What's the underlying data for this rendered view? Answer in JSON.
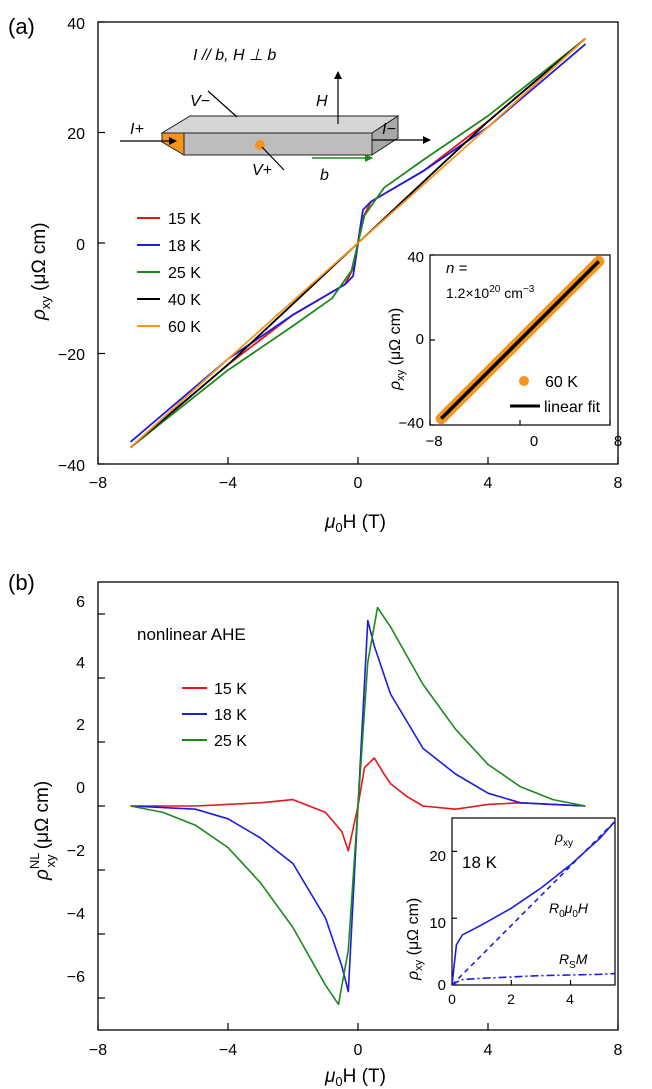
{
  "panel_a": {
    "label": "(a)",
    "xlabel_sym": "μ",
    "xlabel_sub": "0",
    "xlabel_rest": "H (T)",
    "ylabel_sym": "ρ",
    "ylabel_sub": "xy",
    "ylabel_unit": " (μΩ cm)",
    "yticks": [
      "40",
      "20",
      "0",
      "−20",
      "−40"
    ],
    "xticks": [
      "−8",
      "−4",
      "0",
      "4",
      "8"
    ],
    "schematic": {
      "title": "I // b, H ⊥ b",
      "v_minus": "V−",
      "v_plus": "V+",
      "i_plus": "I+",
      "i_minus": "I−",
      "h": "H",
      "b": "b"
    },
    "inset": {
      "n_label": "n =",
      "n_value": "1.2×10",
      "n_exp": "20",
      "n_unit": " cm",
      "n_unit_exp": "−3",
      "ylabel_sym": "ρ",
      "ylabel_sub": "xy",
      "ylabel_unit": " (μΩ cm)",
      "yticks": [
        "40",
        "0",
        "−40"
      ],
      "xticks": [
        "−8",
        "0",
        "8"
      ],
      "legend": [
        "60 K",
        "linear fit"
      ]
    }
  },
  "panel_b": {
    "label": "(b)",
    "annotation": "nonlinear AHE",
    "xlabel_sym": "μ",
    "xlabel_sub": "0",
    "xlabel_rest": "H (T)",
    "ylabel_sym": "ρ",
    "ylabel_sup": "NL",
    "ylabel_sub": "xy",
    "ylabel_unit": " (μΩ cm)",
    "yticks": [
      "6",
      "4",
      "2",
      "0",
      "−2",
      "−4",
      "−6"
    ],
    "xticks": [
      "−8",
      "−4",
      "0",
      "4",
      "8"
    ],
    "inset": {
      "temp": "18 K",
      "ylabel_sym": "ρ",
      "ylabel_sub": "xy",
      "ylabel_unit": " (μΩ cm)",
      "yticks": [
        "20",
        "10",
        "0"
      ],
      "xticks": [
        "0",
        "2",
        "4"
      ],
      "lbl_rho": "ρ",
      "lbl_rho_sub": "xy",
      "lbl_r0": "R",
      "lbl_r0_sub": "0",
      "lbl_r0_rest": "μ",
      "lbl_r0_sub2": "0",
      "lbl_r0_end": "H",
      "lbl_rs": "R",
      "lbl_rs_sub": "S",
      "lbl_rs_rest": "M"
    }
  },
  "colors": {
    "15K": "#e8151b",
    "18K": "#1c1ce0",
    "25K": "#1b8a1b",
    "40K": "#000000",
    "60K": "#f7941d"
  },
  "chart_data": [
    {
      "type": "line",
      "xlim": [
        -8,
        8
      ],
      "ylim": [
        -40,
        40
      ],
      "legend_position": "left",
      "series": [
        {
          "name": "15 K",
          "color": "#e8151b",
          "x": [
            -7,
            -4,
            -2,
            -0.4,
            -0.1,
            0,
            0.1,
            0.4,
            2,
            4,
            7
          ],
          "y": [
            -37,
            -22,
            -13,
            -7.5,
            -4,
            0,
            4,
            7.5,
            13,
            22,
            37
          ]
        },
        {
          "name": "18 K",
          "color": "#1c1ce0",
          "x": [
            -7,
            -4,
            -2,
            -0.4,
            -0.15,
            0,
            0.15,
            0.4,
            2,
            4,
            7
          ],
          "y": [
            -36,
            -21,
            -13,
            -7.5,
            -6,
            0,
            6,
            7.5,
            13,
            21,
            36
          ]
        },
        {
          "name": "25 K",
          "color": "#1b8a1b",
          "x": [
            -7,
            -4,
            -2,
            -0.8,
            -0.2,
            0,
            0.2,
            0.8,
            2,
            4,
            7
          ],
          "y": [
            -37,
            -23,
            -15,
            -10,
            -5,
            0,
            5,
            10,
            15,
            23,
            37
          ]
        },
        {
          "name": "40 K",
          "color": "#000000",
          "x": [
            -7,
            -4,
            -2,
            0,
            2,
            4,
            7
          ],
          "y": [
            -37,
            -22,
            -11,
            0,
            11,
            22,
            37
          ]
        },
        {
          "name": "60 K",
          "color": "#f7941d",
          "x": [
            -7,
            -4,
            -2,
            0,
            2,
            4,
            7
          ],
          "y": [
            -37,
            -21,
            -10.5,
            0,
            10.5,
            21,
            37
          ]
        }
      ]
    },
    {
      "type": "scatter",
      "xlim": [
        -8,
        8
      ],
      "ylim": [
        -40,
        40
      ],
      "series": [
        {
          "name": "60 K",
          "color": "#f7941d",
          "x": [
            -7,
            -5,
            -3,
            -1,
            0,
            1,
            3,
            5,
            7
          ],
          "y": [
            -37,
            -26.4,
            -15.9,
            -5.3,
            0,
            5.3,
            15.9,
            26.4,
            37
          ]
        },
        {
          "name": "linear fit",
          "color": "#000000",
          "x": [
            -7,
            7
          ],
          "y": [
            -37,
            37
          ]
        }
      ]
    },
    {
      "type": "line",
      "xlim": [
        -8,
        8
      ],
      "ylim": [
        -7,
        7
      ],
      "series": [
        {
          "name": "15 K",
          "color": "#e8151b",
          "x": [
            -7,
            -5,
            -3,
            -2,
            -1,
            -0.5,
            -0.3,
            0,
            0.2,
            0.5,
            0.8,
            1,
            1.5,
            2,
            3,
            4,
            5,
            6,
            7
          ],
          "y": [
            0,
            0,
            0.1,
            0.2,
            -0.2,
            -0.8,
            -1.4,
            0,
            1.2,
            1.5,
            1.0,
            0.7,
            0.3,
            0,
            -0.1,
            0.05,
            0.1,
            0.05,
            0
          ]
        },
        {
          "name": "18 K",
          "color": "#1c1ce0",
          "x": [
            -7,
            -6,
            -5,
            -4,
            -3,
            -2,
            -1,
            -0.5,
            -0.3,
            0,
            0.3,
            0.5,
            1,
            2,
            3,
            4,
            5,
            6,
            7
          ],
          "y": [
            0,
            -0.05,
            -0.1,
            -0.4,
            -1.0,
            -1.8,
            -3.5,
            -5.0,
            -5.8,
            0,
            5.8,
            5.0,
            3.5,
            1.8,
            1.0,
            0.4,
            0.1,
            0.05,
            0
          ]
        },
        {
          "name": "25 K",
          "color": "#1b8a1b",
          "x": [
            -7,
            -6,
            -5,
            -4,
            -3,
            -2,
            -1,
            -0.6,
            -0.3,
            0,
            0.3,
            0.6,
            1,
            2,
            3,
            4,
            5,
            6,
            7
          ],
          "y": [
            0,
            -0.2,
            -0.6,
            -1.3,
            -2.4,
            -3.8,
            -5.6,
            -6.2,
            -4.5,
            0,
            4.5,
            6.2,
            5.6,
            3.8,
            2.4,
            1.3,
            0.6,
            0.2,
            0
          ]
        }
      ]
    },
    {
      "type": "line",
      "xlim": [
        0,
        5.5
      ],
      "ylim": [
        0,
        25
      ],
      "series": [
        {
          "name": "ρxy",
          "color": "#1c1ce0",
          "x": [
            0,
            0.15,
            0.35,
            1,
            2,
            3,
            4,
            5,
            5.5
          ],
          "y": [
            0,
            6,
            7.5,
            9,
            11.5,
            14.5,
            18,
            22,
            24.5
          ]
        },
        {
          "name": "R0μ0H",
          "color": "#1c1ce0",
          "x": [
            0,
            5.5
          ],
          "y": [
            0,
            24.5
          ]
        },
        {
          "name": "RSM",
          "color": "#1c1ce0",
          "x": [
            0,
            0.3,
            1,
            2,
            3,
            4,
            5,
            5.5
          ],
          "y": [
            0,
            0.8,
            1.0,
            1.2,
            1.4,
            1.5,
            1.6,
            1.7
          ]
        }
      ]
    }
  ]
}
